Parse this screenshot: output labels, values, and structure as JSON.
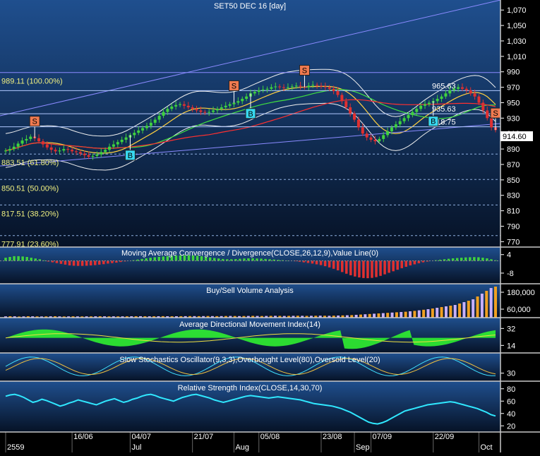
{
  "title": "SET50 DEC 16  [day]",
  "last_price": "914.60",
  "colors": {
    "panel_top": "#1f4f8e",
    "panel_bottom": "#061226",
    "candle_up": "#3fd23f",
    "candle_down": "#e03030",
    "axis_text": "#ffffff",
    "grid": "#5a7fb5",
    "price_tag_bg": "#ffffff",
    "marker_s": "#f07a50",
    "marker_b": "#38d8f0"
  },
  "chart_data": [
    {
      "type": "candlestick",
      "title": "SET50 DEC 16  [day]",
      "ylim": [
        763,
        1083
      ],
      "y_ticks": [
        "1,070",
        "1,050",
        "1,030",
        "1,010",
        "990",
        "970",
        "950",
        "930",
        "910",
        "890",
        "870",
        "850",
        "830",
        "810",
        "790",
        "770"
      ],
      "fib_levels": [
        {
          "label": "989.11 (100.00%)",
          "value": 989.11
        },
        {
          "label": "883.51 (61.80%)",
          "value": 883.51
        },
        {
          "label": "850.51 (50.00%)",
          "value": 850.51
        },
        {
          "label": "817.51 (38.20%)",
          "value": 817.51
        },
        {
          "label": "777.91 (23.60%)",
          "value": 777.91
        }
      ],
      "horizontal_levels": [
        {
          "label": "965.63",
          "value": 965.63
        },
        {
          "label": "935.63",
          "value": 935.63
        },
        {
          "label": "918.75",
          "value": 918.75
        }
      ],
      "closes": [
        888,
        890,
        893,
        897,
        901,
        903,
        906,
        904,
        900,
        896,
        892,
        889,
        887,
        888,
        890,
        889,
        887,
        886,
        884,
        882,
        880,
        881,
        883,
        886,
        889,
        893,
        896,
        899,
        902,
        905,
        908,
        911,
        914,
        917,
        920,
        924,
        928,
        933,
        938,
        942,
        945,
        947,
        948,
        946,
        944,
        942,
        940,
        938,
        937,
        938,
        940,
        942,
        944,
        946,
        948,
        950,
        952,
        955,
        958,
        962,
        964,
        966,
        967,
        968,
        970,
        971,
        970,
        969,
        970,
        971,
        972,
        971,
        970,
        972,
        973,
        972,
        971,
        970,
        968,
        965,
        960,
        952,
        944,
        936,
        928,
        918,
        910,
        905,
        902,
        900,
        903,
        908,
        913,
        918,
        922,
        926,
        930,
        934,
        938,
        942,
        946,
        948,
        950,
        952,
        955,
        958,
        962,
        966,
        968,
        970,
        968,
        966,
        962,
        958,
        950,
        940,
        930,
        918,
        914.6
      ],
      "markers": [
        {
          "label": "S",
          "index": 7
        },
        {
          "label": "B",
          "index": 30
        },
        {
          "label": "S",
          "index": 55
        },
        {
          "label": "B",
          "index": 59
        },
        {
          "label": "S",
          "index": 72
        },
        {
          "label": "B",
          "index": 103
        },
        {
          "label": "S",
          "index": 122
        }
      ],
      "x_ticks": [
        {
          "label": "2559",
          "index": 0
        },
        {
          "label": "16/06",
          "index": 16
        },
        {
          "label": "Jul",
          "index": 30
        },
        {
          "label": "04/07",
          "index": 30
        },
        {
          "label": "21/07",
          "index": 45
        },
        {
          "label": "Aug",
          "index": 55
        },
        {
          "label": "05/08",
          "index": 61
        },
        {
          "label": "23/08",
          "index": 76
        },
        {
          "label": "Sep",
          "index": 84
        },
        {
          "label": "07/09",
          "index": 88
        },
        {
          "label": "22/09",
          "index": 103
        },
        {
          "label": "Oct",
          "index": 114
        }
      ]
    },
    {
      "type": "area",
      "title": "Moving Average Convergence / Divergence(CLOSE,26,12,9),Value Line(0)",
      "y_ticks": [
        "4",
        "-8"
      ],
      "ylim": [
        -14,
        8
      ],
      "values": [
        2,
        2.5,
        3,
        3,
        2.8,
        2.5,
        2,
        1.5,
        1,
        0.3,
        -0.5,
        -1,
        -1.5,
        -2,
        -2.5,
        -3,
        -3.2,
        -3.3,
        -3.3,
        -3.2,
        -3,
        -2.8,
        -2.5,
        -2.2,
        -1.8,
        -1.5,
        -1.2,
        -0.8,
        -0.4,
        0,
        0.4,
        0.8,
        1.2,
        1.6,
        2,
        2.3,
        2.6,
        2.8,
        3,
        3.2,
        3.4,
        3.5,
        3.6,
        3.6,
        3.5,
        3.3,
        3,
        2.6,
        2.2,
        1.8,
        1.5,
        1.2,
        1,
        1,
        1.1,
        1.3,
        1.5,
        1.6,
        1.6,
        1.5,
        1.4,
        1.2,
        1,
        0.8,
        0.6,
        0.4,
        0.2,
        0,
        -0.3,
        -0.6,
        -1,
        -1.4,
        -1.8,
        -2.3,
        -2.8,
        -3.5,
        -4.3,
        -5.2,
        -6.2,
        -7.3,
        -8.4,
        -9.4,
        -10.2,
        -10.8,
        -11.2,
        -11.3,
        -11.1,
        -10.6,
        -9.8,
        -8.8,
        -7.8,
        -6.8,
        -5.8,
        -4.8,
        -3.9,
        -3,
        -2.3,
        -1.6,
        -1,
        -0.5,
        0,
        0.4,
        0.7,
        1,
        1.3,
        1.6,
        1.8,
        2,
        2.2,
        2.3,
        2.4,
        2.3,
        2,
        1.6,
        1,
        0.4
      ]
    },
    {
      "type": "bar",
      "title": "Buy/Sell Volume Analysis",
      "y_ticks": [
        "180,000",
        "60,000"
      ],
      "ylim": [
        0,
        230000
      ],
      "values": [
        9000,
        10000,
        9500,
        8000,
        9000,
        10000,
        9500,
        9000,
        8500,
        9000,
        9500,
        10000,
        9000,
        8500,
        9000,
        9500,
        9000,
        8800,
        9200,
        9000,
        9500,
        10000,
        9500,
        9000,
        9500,
        9000,
        9200,
        9500,
        9800,
        10000,
        10200,
        9800,
        9500,
        9800,
        10000,
        10500,
        10000,
        9800,
        10000,
        10200,
        10500,
        11000,
        10800,
        10500,
        11000,
        11500,
        11000,
        10500,
        11000,
        11500,
        12000,
        11500,
        11000,
        11500,
        12000,
        12500,
        12000,
        11500,
        12000,
        12500,
        13000,
        12500,
        12000,
        12500,
        13000,
        13500,
        13000,
        12500,
        13000,
        13500,
        14000,
        13500,
        13000,
        14000,
        15000,
        16000,
        17000,
        18000,
        20000,
        22000,
        24000,
        26000,
        28000,
        30000,
        32000,
        34000,
        36000,
        38000,
        40000,
        42000,
        45000,
        48000,
        52000,
        56000,
        60000,
        65000,
        70000,
        75000,
        80000,
        85000,
        90000,
        100000,
        110000,
        120000,
        130000,
        150000,
        170000,
        190000,
        210000,
        220000
      ]
    },
    {
      "type": "area",
      "title": "Average Directional Movement Index(14)",
      "y_ticks": [
        "32",
        "14"
      ],
      "ylim": [
        6,
        42
      ]
    },
    {
      "type": "line",
      "title": "Slow Stochastics Oscillator(9,3,3),Overbought Level(80),Oversold Level(20)",
      "y_ticks": [
        "30"
      ],
      "ylim": [
        0,
        100
      ]
    },
    {
      "type": "line",
      "title": "Relative Strength Index(CLOSE,14,30,70)",
      "y_ticks": [
        "80",
        "60",
        "40",
        "20"
      ],
      "ylim": [
        10,
        90
      ],
      "values": [
        68,
        70,
        71,
        69,
        66,
        62,
        58,
        60,
        63,
        61,
        58,
        55,
        52,
        54,
        57,
        59,
        62,
        60,
        58,
        56,
        54,
        57,
        60,
        62,
        64,
        61,
        58,
        60,
        63,
        65,
        68,
        70,
        71,
        69,
        66,
        64,
        62,
        60,
        63,
        66,
        68,
        70,
        71,
        69,
        67,
        65,
        62,
        60,
        58,
        60,
        62,
        64,
        66,
        68,
        69,
        68,
        67,
        66,
        65,
        66,
        67,
        66,
        65,
        64,
        63,
        62,
        60,
        58,
        56,
        55,
        54,
        53,
        52,
        50,
        48,
        45,
        42,
        38,
        34,
        30,
        26,
        24,
        23,
        25,
        28,
        32,
        36,
        40,
        44,
        46,
        48,
        50,
        52,
        54,
        55,
        56,
        57,
        58,
        59,
        58,
        56,
        54,
        52,
        50,
        48,
        45,
        42,
        38,
        36
      ]
    }
  ]
}
